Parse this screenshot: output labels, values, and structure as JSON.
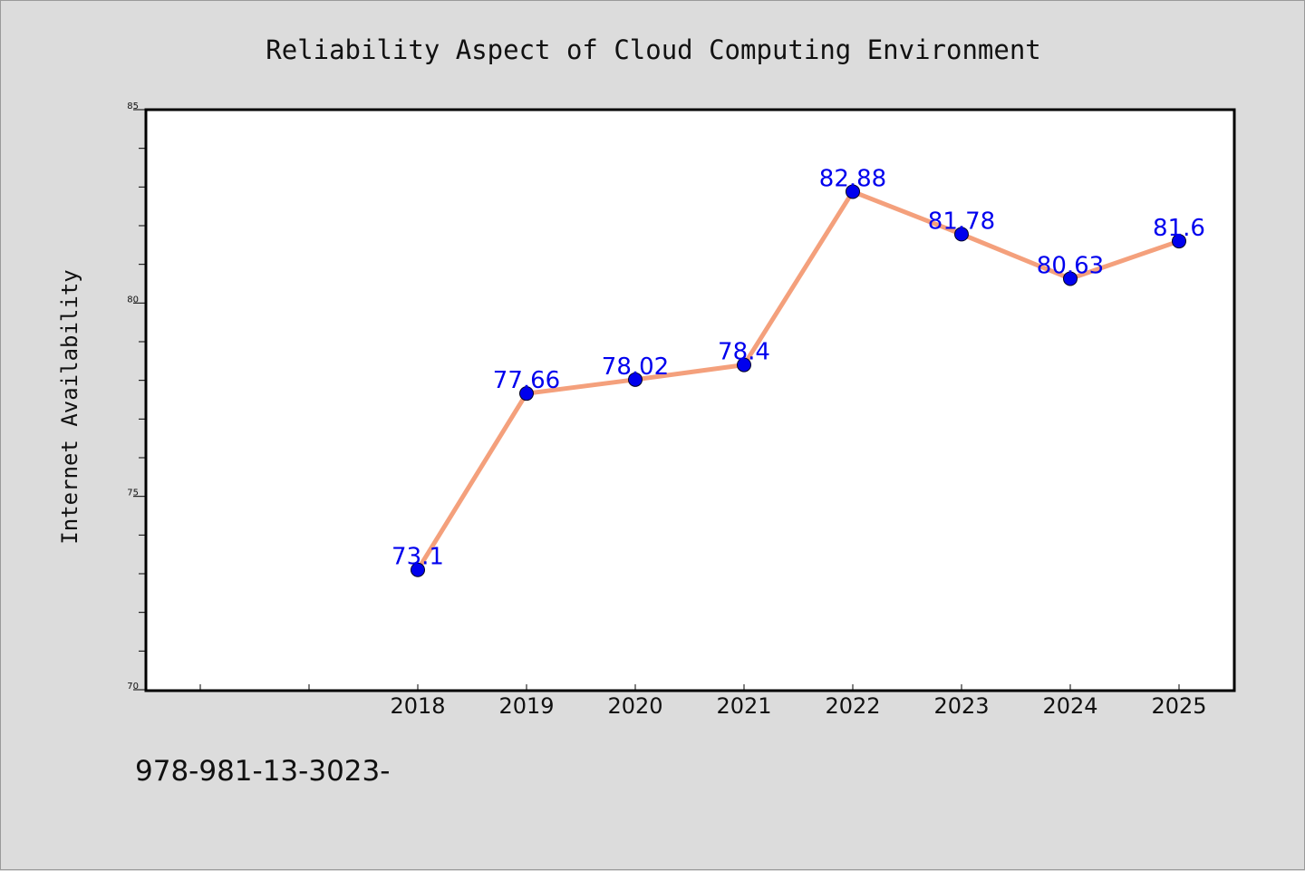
{
  "footer_note": "978-981-13-3023-",
  "chart_data": {
    "type": "line",
    "title": "Reliability Aspect of Cloud Computing Environment",
    "xlabel": "",
    "ylabel": "Internet Availability",
    "categories": [
      "2018",
      "2019",
      "2020",
      "2021",
      "2022",
      "2023",
      "2024",
      "2025"
    ],
    "x_slot_count": 10,
    "first_category_slot": 2,
    "values": [
      73.1,
      77.66,
      78.02,
      78.4,
      82.88,
      81.78,
      80.63,
      81.6
    ],
    "data_labels": [
      "73.1",
      "77.66",
      "78.02",
      "78.4",
      "82.88",
      "81.78",
      "80.63",
      "81.6"
    ],
    "ylim": [
      70,
      85
    ],
    "yticks": [
      70,
      75,
      80,
      85
    ],
    "ytick_labels": [
      "70",
      "75",
      "80",
      "85"
    ],
    "grid": false,
    "legend": "none",
    "colors": {
      "line": "#f4a07c",
      "marker": "#0000ee",
      "data_label": "#0000ee",
      "plot_bg": "#ffffff",
      "page_bg": "#dcdcdc"
    }
  }
}
